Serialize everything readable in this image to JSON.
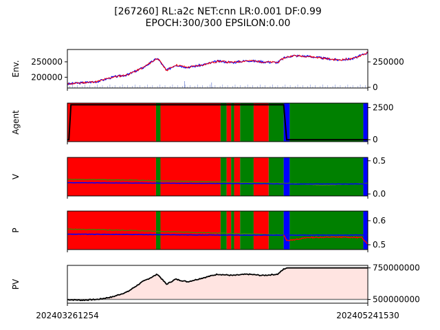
{
  "figure": {
    "title_line1": "[267260] RL:a2c NET:cnn LR:0.001 DF:0.99",
    "title_line2": "EPOCH:300/300 EPSILON:0.00",
    "x_start_label": "202403261254",
    "x_end_label": "202405241530"
  },
  "colors": {
    "buy": "#ff0000",
    "sell": "#0000ff",
    "hold": "#008000",
    "pv_fill": "#ffe4e1",
    "line_black": "#000000",
    "line_green": "#3a8a00",
    "line_blue": "#0000ff",
    "line_red": "#ff0000"
  },
  "chart_data": [
    {
      "panel": "env",
      "type": "line",
      "ylabel": "Env.",
      "y_left_ticks": [
        "250000",
        "200000"
      ],
      "y_left_values": [
        250000,
        200000
      ],
      "y_right_ticks": [
        "250000",
        "0"
      ],
      "ylim": [
        165000,
        290000
      ],
      "series": [
        {
          "role": "price",
          "x": [
            0,
            0.05,
            0.1,
            0.15,
            0.2,
            0.25,
            0.3,
            0.33,
            0.36,
            0.4,
            0.45,
            0.5,
            0.55,
            0.6,
            0.65,
            0.7,
            0.72,
            0.75,
            0.8,
            0.85,
            0.9,
            0.95,
            1.0
          ],
          "values": [
            178000,
            182000,
            186000,
            200000,
            208000,
            230000,
            262000,
            222000,
            240000,
            232000,
            240000,
            252000,
            248000,
            254000,
            250000,
            248000,
            262000,
            270000,
            268000,
            262000,
            256000,
            260000,
            280000
          ]
        }
      ]
    },
    {
      "panel": "agent",
      "type": "area",
      "ylabel": "Agent",
      "y_right_ticks": [
        "2500",
        "0"
      ],
      "y_right_values": [
        2500,
        0
      ],
      "ylim": [
        -150,
        2850
      ],
      "action_bands": [
        {
          "start": 0.0,
          "end": 0.295,
          "action": "buy"
        },
        {
          "start": 0.295,
          "end": 0.31,
          "action": "hold"
        },
        {
          "start": 0.31,
          "end": 0.51,
          "action": "buy"
        },
        {
          "start": 0.51,
          "end": 0.53,
          "action": "hold"
        },
        {
          "start": 0.53,
          "end": 0.545,
          "action": "buy"
        },
        {
          "start": 0.545,
          "end": 0.555,
          "action": "hold"
        },
        {
          "start": 0.555,
          "end": 0.575,
          "action": "buy"
        },
        {
          "start": 0.575,
          "end": 0.62,
          "action": "hold"
        },
        {
          "start": 0.62,
          "end": 0.67,
          "action": "buy"
        },
        {
          "start": 0.67,
          "end": 0.72,
          "action": "hold"
        },
        {
          "start": 0.72,
          "end": 0.74,
          "action": "sell"
        },
        {
          "start": 0.74,
          "end": 0.985,
          "action": "hold"
        },
        {
          "start": 0.985,
          "end": 1.0,
          "action": "sell"
        }
      ],
      "series": [
        {
          "role": "holdings",
          "x": [
            0,
            0.005,
            0.012,
            0.7,
            0.72,
            0.73,
            1.0
          ],
          "values": [
            0,
            0,
            2720,
            2720,
            2720,
            0,
            0
          ]
        }
      ]
    },
    {
      "panel": "value",
      "type": "area",
      "ylabel": "V",
      "y_right_ticks": [
        "0.5",
        "0.0"
      ],
      "y_right_values": [
        0.5,
        0.0
      ],
      "ylim": [
        -0.03,
        0.55
      ],
      "action_bands_from": "agent",
      "series": [
        {
          "role": "v_green",
          "x": [
            0,
            0.2,
            0.4,
            0.6,
            0.74,
            0.85,
            1.0
          ],
          "values": [
            0.22,
            0.21,
            0.19,
            0.17,
            0.16,
            0.13,
            0.16
          ]
        },
        {
          "role": "v_blue",
          "x": [
            0,
            0.2,
            0.4,
            0.6,
            0.74,
            0.85,
            1.0
          ],
          "values": [
            0.17,
            0.165,
            0.16,
            0.155,
            0.15,
            0.15,
            0.15
          ]
        }
      ]
    },
    {
      "panel": "policy",
      "type": "area",
      "ylabel": "P",
      "y_right_ticks": [
        "0.6",
        "0.5"
      ],
      "y_right_values": [
        0.6,
        0.5
      ],
      "ylim": [
        0.48,
        0.64
      ],
      "action_bands_from": "agent",
      "series": [
        {
          "role": "p_green",
          "x": [
            0,
            0.2,
            0.4,
            0.6,
            0.74,
            1.0
          ],
          "values": [
            0.565,
            0.56,
            0.552,
            0.545,
            0.54,
            0.54
          ]
        },
        {
          "role": "p_blue",
          "x": [
            0,
            0.2,
            0.4,
            0.6,
            0.74,
            1.0
          ],
          "values": [
            0.544,
            0.543,
            0.541,
            0.54,
            0.54,
            0.54
          ]
        },
        {
          "role": "p_red",
          "x": [
            0.72,
            0.73,
            0.75,
            0.8,
            0.9,
            0.98,
            1.0
          ],
          "values": [
            0.54,
            0.518,
            0.52,
            0.53,
            0.532,
            0.53,
            0.503
          ]
        }
      ]
    },
    {
      "panel": "pv",
      "type": "area",
      "ylabel": "PV",
      "y_right_ticks": [
        "750000000",
        "500000000"
      ],
      "y_right_values": [
        750000000,
        500000000
      ],
      "ylim": [
        470000000,
        770000000
      ],
      "baseline": 500000000,
      "series": [
        {
          "role": "portfolio_value",
          "x": [
            0,
            0.05,
            0.1,
            0.15,
            0.2,
            0.25,
            0.3,
            0.33,
            0.36,
            0.4,
            0.45,
            0.5,
            0.55,
            0.6,
            0.65,
            0.7,
            0.72,
            0.73,
            1.0
          ],
          "values": [
            498000000,
            494000000,
            500000000,
            520000000,
            560000000,
            640000000,
            700000000,
            620000000,
            660000000,
            640000000,
            670000000,
            700000000,
            690000000,
            700000000,
            690000000,
            700000000,
            740000000,
            750000000,
            750000000
          ]
        }
      ]
    }
  ]
}
